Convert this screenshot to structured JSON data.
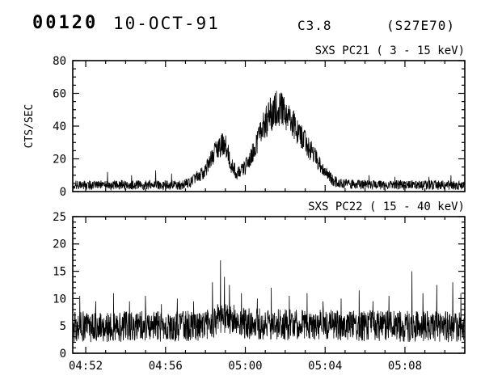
{
  "header": {
    "event_number": "00120",
    "date": "10-OCT-91",
    "goes_class": "C3.8",
    "location": "(S27E70)"
  },
  "chart_data": [
    {
      "type": "line",
      "title": "SXS PC21 (  3 - 15 keV)",
      "ylabel": "CTS/SEC",
      "ylim": [
        0,
        80
      ],
      "yticks": [
        0,
        20,
        40,
        60,
        80
      ],
      "y_minor_step": 5,
      "x_minutes_range": [
        1.35,
        21.0
      ],
      "xticks_minutes": [
        2,
        6,
        10,
        14,
        18
      ],
      "xtick_labels": [
        "04:52",
        "04:56",
        "05:00",
        "05:04",
        "05:08"
      ],
      "x_minor_step_min": 1,
      "show_x_labels": false,
      "grid": false,
      "envelope": [
        [
          1.35,
          4
        ],
        [
          3,
          4
        ],
        [
          5,
          4
        ],
        [
          6.8,
          4
        ],
        [
          7.3,
          6
        ],
        [
          8.0,
          13
        ],
        [
          8.5,
          24
        ],
        [
          8.85,
          29
        ],
        [
          9.05,
          27
        ],
        [
          9.3,
          16
        ],
        [
          9.6,
          11
        ],
        [
          9.9,
          13
        ],
        [
          10.3,
          22
        ],
        [
          10.8,
          37
        ],
        [
          11.2,
          46
        ],
        [
          11.55,
          51
        ],
        [
          11.8,
          50
        ],
        [
          12.1,
          46
        ],
        [
          12.5,
          40
        ],
        [
          12.9,
          32
        ],
        [
          13.3,
          25
        ],
        [
          13.7,
          17
        ],
        [
          14.1,
          10
        ],
        [
          14.5,
          6
        ],
        [
          15.2,
          4.5
        ],
        [
          16.5,
          4
        ],
        [
          18,
          4
        ],
        [
          19.5,
          4
        ],
        [
          21,
          3.5
        ]
      ],
      "spikes": [
        [
          3.1,
          12
        ],
        [
          4.3,
          10
        ],
        [
          5.5,
          13
        ],
        [
          6.3,
          11
        ],
        [
          16.2,
          10
        ],
        [
          17.5,
          9
        ],
        [
          19.2,
          9
        ],
        [
          20.3,
          10
        ]
      ],
      "noise_base": 2.2,
      "noise_scale": 0.18,
      "min_value": 0.2,
      "noise_seed": 1234567,
      "samples": 1500
    },
    {
      "type": "line",
      "title": "SXS PC22 ( 15 - 40 keV)",
      "ylabel": "",
      "ylim": [
        0,
        25
      ],
      "yticks": [
        0,
        5,
        10,
        15,
        20,
        25
      ],
      "y_minor_step": 1,
      "x_minutes_range": [
        1.35,
        21.0
      ],
      "xticks_minutes": [
        2,
        6,
        10,
        14,
        18
      ],
      "xtick_labels": [
        "04:52",
        "04:56",
        "05:00",
        "05:04",
        "05:08"
      ],
      "x_minor_step_min": 1,
      "show_x_labels": true,
      "grid": false,
      "envelope": [
        [
          1.35,
          4.8
        ],
        [
          8.0,
          5.0
        ],
        [
          8.5,
          6.0
        ],
        [
          9.0,
          6.5
        ],
        [
          9.5,
          6.0
        ],
        [
          10.0,
          5.5
        ],
        [
          12.0,
          5.2
        ],
        [
          21.0,
          4.8
        ]
      ],
      "spikes": [
        [
          1.7,
          10.5
        ],
        [
          2.5,
          9.5
        ],
        [
          3.4,
          11
        ],
        [
          4.2,
          9.5
        ],
        [
          5.0,
          10.5
        ],
        [
          5.8,
          9
        ],
        [
          6.6,
          10
        ],
        [
          7.4,
          9.5
        ],
        [
          8.35,
          13
        ],
        [
          8.75,
          17
        ],
        [
          8.95,
          14
        ],
        [
          9.2,
          12.5
        ],
        [
          9.8,
          11
        ],
        [
          10.6,
          10
        ],
        [
          11.3,
          12
        ],
        [
          12.2,
          10.5
        ],
        [
          13.1,
          11
        ],
        [
          13.9,
          9.5
        ],
        [
          14.8,
          10
        ],
        [
          15.7,
          11.5
        ],
        [
          16.4,
          9.5
        ],
        [
          17.2,
          10.5
        ],
        [
          18.35,
          15
        ],
        [
          18.9,
          11
        ],
        [
          19.6,
          12.5
        ],
        [
          20.4,
          13
        ],
        [
          20.8,
          11
        ]
      ],
      "noise_base": 2.6,
      "noise_scale": 0.05,
      "min_value": 0.8,
      "noise_seed": 424242,
      "samples": 1500
    }
  ],
  "colors": {
    "foreground": "#000000",
    "background": "#ffffff"
  }
}
